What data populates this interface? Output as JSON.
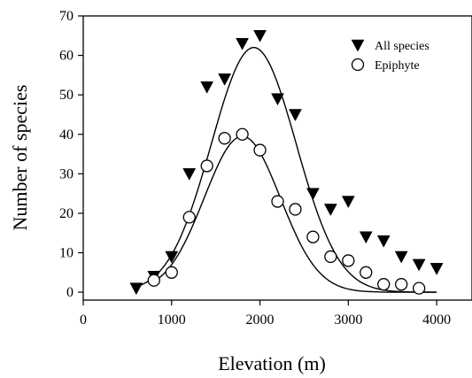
{
  "chart_data": {
    "type": "scatter",
    "xlabel": "Elevation (m)",
    "ylabel": "Number of species",
    "xlim": [
      0,
      4400
    ],
    "ylim": [
      -2,
      70
    ],
    "xticks": [
      0,
      1000,
      2000,
      3000,
      4000
    ],
    "yticks": [
      0,
      10,
      20,
      30,
      40,
      50,
      60,
      70
    ],
    "xtick_labels": [
      "0",
      "1000",
      "2000",
      "3000",
      "4000"
    ],
    "ytick_labels": [
      "0",
      "10",
      "20",
      "30",
      "40",
      "50",
      "60",
      "70"
    ],
    "grid": false,
    "legend_position": "top-right",
    "series": [
      {
        "name": "All species",
        "marker": "filled-down-triangle",
        "color": "#000000",
        "x": [
          600,
          800,
          1000,
          1200,
          1400,
          1600,
          1800,
          2000,
          2200,
          2400,
          2600,
          2800,
          3000,
          3200,
          3400,
          3600,
          3800,
          4000
        ],
        "y": [
          1,
          4,
          9,
          30,
          52,
          54,
          63,
          65,
          49,
          45,
          25,
          21,
          23,
          14,
          13,
          9,
          7,
          6
        ],
        "fit": {
          "peak": 62,
          "center": 1930,
          "sd": 480,
          "x_range": [
            600,
            4000
          ]
        }
      },
      {
        "name": "Epiphyte",
        "marker": "open-circle",
        "color": "#000000",
        "x": [
          800,
          1000,
          1200,
          1400,
          1600,
          1800,
          2000,
          2200,
          2400,
          2600,
          2800,
          3000,
          3200,
          3400,
          3600,
          3800
        ],
        "y": [
          3,
          5,
          19,
          32,
          39,
          40,
          36,
          23,
          21,
          14,
          9,
          8,
          5,
          2,
          2,
          1
        ],
        "fit": {
          "peak": 39.5,
          "center": 1800,
          "sd": 430,
          "x_range": [
            800,
            4000
          ]
        }
      }
    ]
  }
}
